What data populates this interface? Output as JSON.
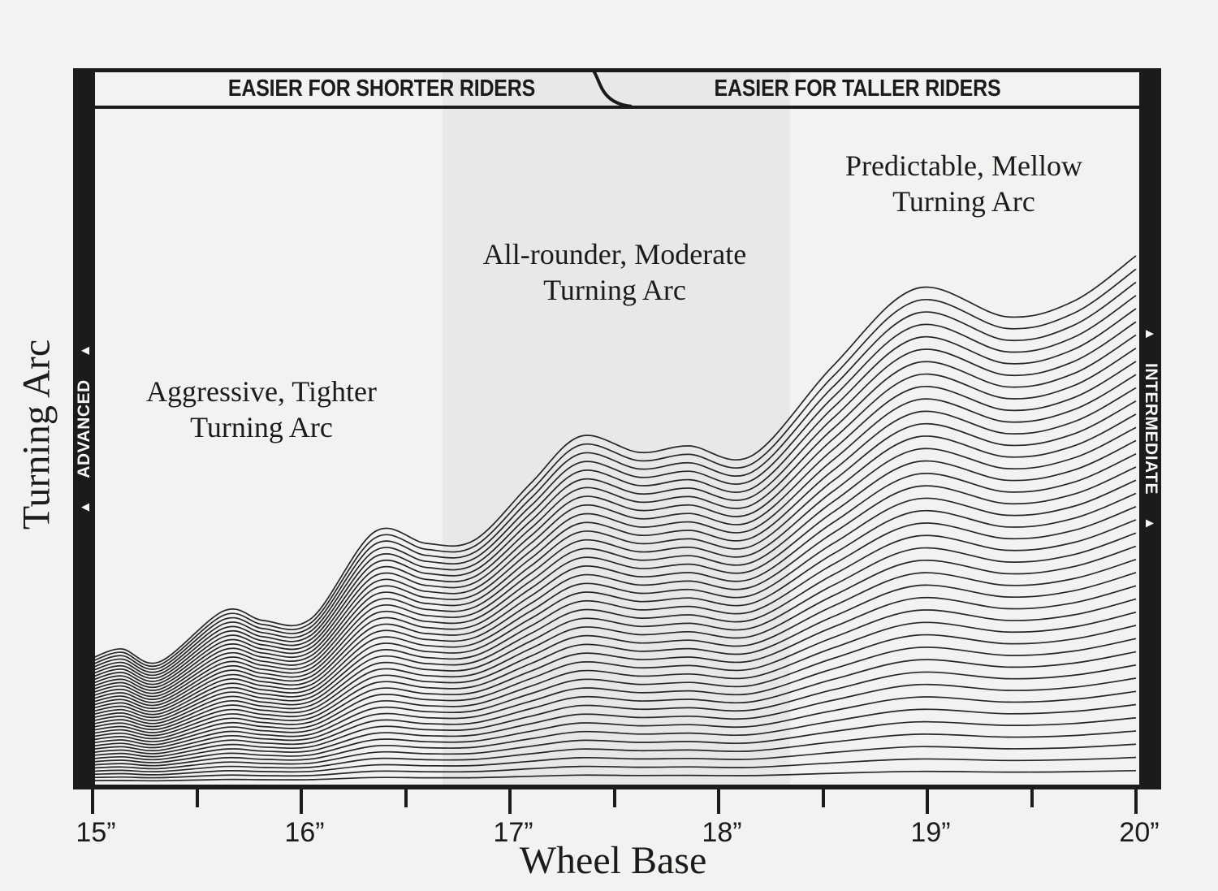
{
  "page": {
    "background": "#f2f2f1",
    "band_color": "#e8e8e7",
    "ink": "#1d1b19",
    "line_color": "#282624"
  },
  "banner": {
    "left_label": "EASIER FOR SHORTER RIDERS",
    "right_label": "EASIER FOR TALLER RIDERS"
  },
  "left_bar": {
    "label": "ADVANCED",
    "arrow_top": "▲",
    "arrow_bottom": "▲"
  },
  "right_bar": {
    "label": "INTERMEDIATE",
    "arrow_top": "▲",
    "arrow_bottom": "▲"
  },
  "regions": {
    "left": {
      "line1": "Aggressive, Tighter",
      "line2": "Turning Arc"
    },
    "middle": {
      "line1": "All-rounder, Moderate",
      "line2": "Turning Arc"
    },
    "right": {
      "line1": "Predictable, Mellow",
      "line2": "Turning Arc"
    }
  },
  "axes": {
    "x_label": "Wheel Base",
    "y_label": "Turning Arc",
    "tick_labels": [
      "15”",
      "16”",
      "17”",
      "18”",
      "19”",
      "20”"
    ]
  },
  "chart_data": {
    "type": "line",
    "title": "",
    "xlabel": "Wheel Base",
    "ylabel": "Turning Arc",
    "x_unit": "inches",
    "x_range": [
      15,
      20
    ],
    "x_ticks": [
      15,
      16,
      17,
      18,
      19,
      20
    ],
    "x_minor_ticks": [
      15.5,
      16.5,
      17.5,
      18.5,
      19.5
    ],
    "grid": false,
    "legend": "none",
    "n_curves": 40,
    "curve_family": "ridgeline fan: curve k equals top profile scaled by k/40, rising from a common baseline",
    "profile_units": "x in inches; y = height in px of the topmost curve above the baseline (y=965px)",
    "top_profile": [
      [
        15.0,
        155
      ],
      [
        15.14,
        166
      ],
      [
        15.32,
        150
      ],
      [
        15.63,
        213
      ],
      [
        15.82,
        201
      ],
      [
        16.05,
        204
      ],
      [
        16.35,
        310
      ],
      [
        16.6,
        296
      ],
      [
        16.83,
        300
      ],
      [
        17.1,
        370
      ],
      [
        17.34,
        428
      ],
      [
        17.62,
        408
      ],
      [
        17.86,
        416
      ],
      [
        18.16,
        404
      ],
      [
        18.55,
        515
      ],
      [
        18.95,
        610
      ],
      [
        19.38,
        575
      ],
      [
        19.7,
        594
      ],
      [
        20.0,
        650
      ]
    ],
    "shaded_band_x_inches": [
      16.68,
      18.34
    ],
    "annotations": [
      "Aggressive, Tighter Turning Arc",
      "All-rounder, Moderate Turning Arc",
      "Predictable, Mellow Turning Arc",
      "EASIER FOR SHORTER RIDERS",
      "EASIER FOR TALLER RIDERS",
      "ADVANCED (left edge)",
      "INTERMEDIATE (right edge)"
    ]
  }
}
